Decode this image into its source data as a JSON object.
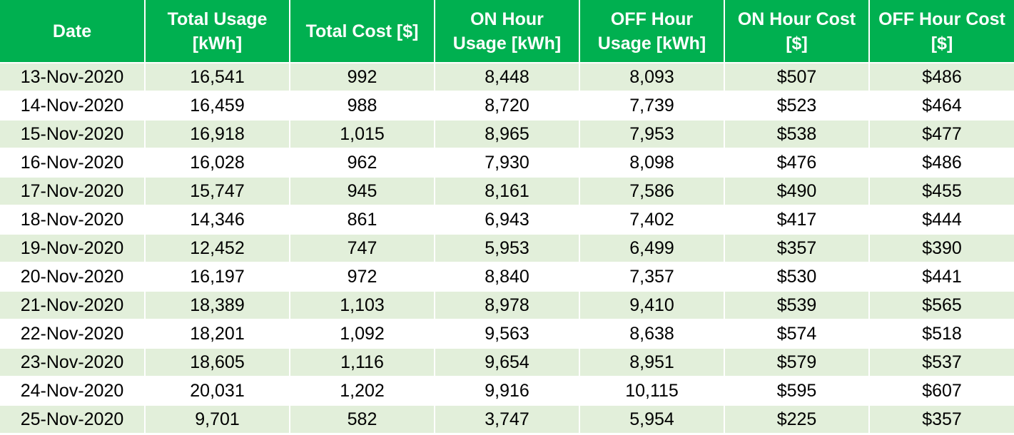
{
  "header": {
    "columns": [
      [
        "Date"
      ],
      [
        "Total Usage",
        "[kWh]"
      ],
      [
        "Total Cost [$]"
      ],
      [
        "ON Hour",
        "Usage [kWh]"
      ],
      [
        "OFF Hour",
        "Usage [kWh]"
      ],
      [
        "ON Hour Cost",
        "[$]"
      ],
      [
        "OFF Hour Cost",
        "[$]"
      ]
    ]
  },
  "rows": [
    [
      "13-Nov-2020",
      "16,541",
      "992",
      "8,448",
      "8,093",
      "$507",
      "$486"
    ],
    [
      "14-Nov-2020",
      "16,459",
      "988",
      "8,720",
      "7,739",
      "$523",
      "$464"
    ],
    [
      "15-Nov-2020",
      "16,918",
      "1,015",
      "8,965",
      "7,953",
      "$538",
      "$477"
    ],
    [
      "16-Nov-2020",
      "16,028",
      "962",
      "7,930",
      "8,098",
      "$476",
      "$486"
    ],
    [
      "17-Nov-2020",
      "15,747",
      "945",
      "8,161",
      "7,586",
      "$490",
      "$455"
    ],
    [
      "18-Nov-2020",
      "14,346",
      "861",
      "6,943",
      "7,402",
      "$417",
      "$444"
    ],
    [
      "19-Nov-2020",
      "12,452",
      "747",
      "5,953",
      "6,499",
      "$357",
      "$390"
    ],
    [
      "20-Nov-2020",
      "16,197",
      "972",
      "8,840",
      "7,357",
      "$530",
      "$441"
    ],
    [
      "21-Nov-2020",
      "18,389",
      "1,103",
      "8,978",
      "9,410",
      "$539",
      "$565"
    ],
    [
      "22-Nov-2020",
      "18,201",
      "1,092",
      "9,563",
      "8,638",
      "$574",
      "$518"
    ],
    [
      "23-Nov-2020",
      "18,605",
      "1,116",
      "9,654",
      "8,951",
      "$579",
      "$537"
    ],
    [
      "24-Nov-2020",
      "20,031",
      "1,202",
      "9,916",
      "10,115",
      "$595",
      "$607"
    ],
    [
      "25-Nov-2020",
      "9,701",
      "582",
      "3,747",
      "5,954",
      "$225",
      "$357"
    ]
  ],
  "colors": {
    "header_bg": "#00b050",
    "header_text": "#ffffff",
    "band_row": "#e2efda",
    "plain_row": "#ffffff"
  }
}
